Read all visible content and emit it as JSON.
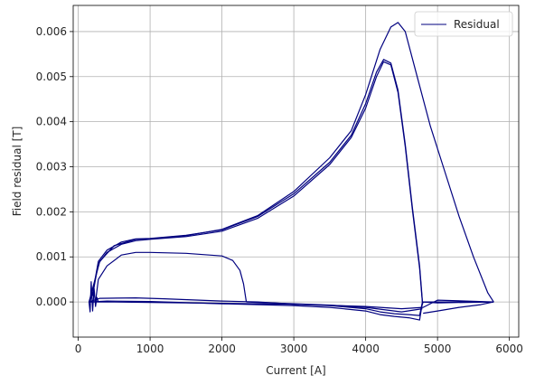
{
  "chart_data": {
    "type": "line",
    "title": "",
    "xlabel": "Current [A]",
    "ylabel": "Field residual [T]",
    "xlim": [
      -70,
      6130
    ],
    "ylim": [
      -0.00078,
      0.00658
    ],
    "x_ticks": [
      0,
      1000,
      2000,
      3000,
      4000,
      5000,
      6000
    ],
    "x_tick_labels": [
      "0",
      "1000",
      "2000",
      "3000",
      "4000",
      "5000",
      "6000"
    ],
    "y_ticks": [
      0.0,
      0.001,
      0.002,
      0.003,
      0.004,
      0.005,
      0.006
    ],
    "y_tick_labels": [
      "0.000",
      "0.001",
      "0.002",
      "0.003",
      "0.004",
      "0.005",
      "0.006"
    ],
    "grid": true,
    "legend_position": "top-right",
    "series_color": "#00007f",
    "series": [
      {
        "name": "Residual",
        "curves": [
          [
            [
              150,
              0.0
            ],
            [
              200,
              0.0002
            ],
            [
              280,
              0.0009
            ],
            [
              400,
              0.00115
            ],
            [
              600,
              0.00133
            ],
            [
              800,
              0.0014
            ],
            [
              1000,
              0.00141
            ],
            [
              1500,
              0.00148
            ],
            [
              2000,
              0.0016
            ],
            [
              2500,
              0.0019
            ],
            [
              3000,
              0.0024
            ],
            [
              3500,
              0.0031
            ],
            [
              3800,
              0.0037
            ],
            [
              4000,
              0.0044
            ],
            [
              4150,
              0.0051
            ],
            [
              4250,
              0.00538
            ],
            [
              4350,
              0.0053
            ],
            [
              4450,
              0.0047
            ],
            [
              4550,
              0.0035
            ],
            [
              4650,
              0.0021
            ],
            [
              4750,
              0.0008
            ],
            [
              4780,
              0.0002
            ],
            [
              4790,
              0.0
            ]
          ],
          [
            [
              150,
              0.0
            ],
            [
              200,
              0.00015
            ],
            [
              280,
              0.00085
            ],
            [
              400,
              0.0011
            ],
            [
              600,
              0.00128
            ],
            [
              800,
              0.00136
            ],
            [
              1000,
              0.00139
            ],
            [
              1500,
              0.00145
            ],
            [
              2000,
              0.00157
            ],
            [
              2500,
              0.00186
            ],
            [
              3000,
              0.00235
            ],
            [
              3500,
              0.00305
            ],
            [
              3800,
              0.00365
            ],
            [
              4000,
              0.0043
            ],
            [
              4150,
              0.005
            ],
            [
              4250,
              0.00533
            ],
            [
              4350,
              0.00526
            ],
            [
              4450,
              0.00465
            ],
            [
              4550,
              0.00345
            ],
            [
              4650,
              0.00205
            ],
            [
              4750,
              0.00075
            ],
            [
              4780,
              0.00015
            ],
            [
              4790,
              0.0
            ]
          ],
          [
            [
              150,
              0.0
            ],
            [
              200,
              0.0003
            ],
            [
              300,
              0.0009
            ],
            [
              500,
              0.00125
            ],
            [
              800,
              0.00139
            ],
            [
              1000,
              0.0014
            ],
            [
              1500,
              0.00147
            ],
            [
              2000,
              0.00161
            ],
            [
              2500,
              0.00192
            ],
            [
              3000,
              0.00245
            ],
            [
              3500,
              0.0032
            ],
            [
              3800,
              0.0038
            ],
            [
              4000,
              0.0046
            ],
            [
              4200,
              0.0056
            ],
            [
              4350,
              0.0061
            ],
            [
              4450,
              0.0062
            ],
            [
              4550,
              0.006
            ],
            [
              4700,
              0.0051
            ],
            [
              4900,
              0.0039
            ],
            [
              5100,
              0.0029
            ],
            [
              5300,
              0.0019
            ],
            [
              5500,
              0.001
            ],
            [
              5700,
              0.0002
            ],
            [
              5780,
              0.0
            ]
          ],
          [
            [
              240,
              0.0
            ],
            [
              280,
              0.0005
            ],
            [
              400,
              0.0008
            ],
            [
              600,
              0.00104
            ],
            [
              800,
              0.0011
            ],
            [
              1000,
              0.0011
            ],
            [
              1500,
              0.00108
            ],
            [
              2000,
              0.00102
            ],
            [
              2150,
              0.00092
            ],
            [
              2250,
              0.0007
            ],
            [
              2300,
              0.0004
            ],
            [
              2330,
              0.0001
            ],
            [
              2340,
              0.0
            ]
          ],
          [
            [
              150,
              0.0
            ],
            [
              400,
              0.0
            ],
            [
              1000,
              -1e-05
            ],
            [
              2000,
              -3e-05
            ],
            [
              3000,
              -5e-05
            ],
            [
              3500,
              -8e-05
            ],
            [
              4000,
              -0.00015
            ],
            [
              4200,
              -0.00022
            ],
            [
              4400,
              -0.00026
            ],
            [
              4600,
              -0.00028
            ],
            [
              4750,
              -0.0003
            ],
            [
              4790,
              0.0
            ],
            [
              5000,
              -2e-05
            ],
            [
              5780,
              0.0
            ]
          ],
          [
            [
              150,
              0.0
            ],
            [
              400,
              2e-05
            ],
            [
              1000,
              1e-05
            ],
            [
              2000,
              -4e-05
            ],
            [
              3000,
              -8e-05
            ],
            [
              3500,
              -0.00012
            ],
            [
              4000,
              -0.0002
            ],
            [
              4200,
              -0.00028
            ],
            [
              4400,
              -0.00032
            ],
            [
              4600,
              -0.00035
            ],
            [
              4750,
              -0.0004
            ],
            [
              4780,
              -0.0001
            ],
            [
              4800,
              0.0
            ],
            [
              5780,
              0.0
            ]
          ],
          [
            [
              150,
              0.0
            ],
            [
              300,
              8e-05
            ],
            [
              800,
              9e-05
            ],
            [
              1200,
              7e-05
            ],
            [
              2000,
              2e-05
            ],
            [
              2500,
              0.0
            ],
            [
              3000,
              -5e-05
            ],
            [
              4000,
              -0.0001
            ],
            [
              4500,
              -0.00015
            ],
            [
              4800,
              -0.00012
            ],
            [
              5000,
              4e-05
            ],
            [
              5780,
              0.0
            ]
          ],
          [
            [
              4800,
              -0.00025
            ],
            [
              5000,
              -0.0002
            ],
            [
              5300,
              -0.00012
            ],
            [
              5600,
              -6e-05
            ],
            [
              5780,
              0.0
            ]
          ],
          [
            [
              2340,
              0.0
            ],
            [
              3000,
              -4e-05
            ],
            [
              3500,
              -7e-05
            ],
            [
              4000,
              -0.00012
            ],
            [
              4500,
              -0.00022
            ],
            [
              4790,
              -0.00015
            ]
          ],
          [
            [
              150,
              0.0
            ],
            [
              165,
              -0.00022
            ],
            [
              180,
              0.00045
            ],
            [
              200,
              -0.0002
            ],
            [
              220,
              0.0003
            ],
            [
              240,
              -0.0001
            ],
            [
              260,
              0.0001
            ],
            [
              280,
              0.0
            ]
          ]
        ]
      }
    ]
  }
}
